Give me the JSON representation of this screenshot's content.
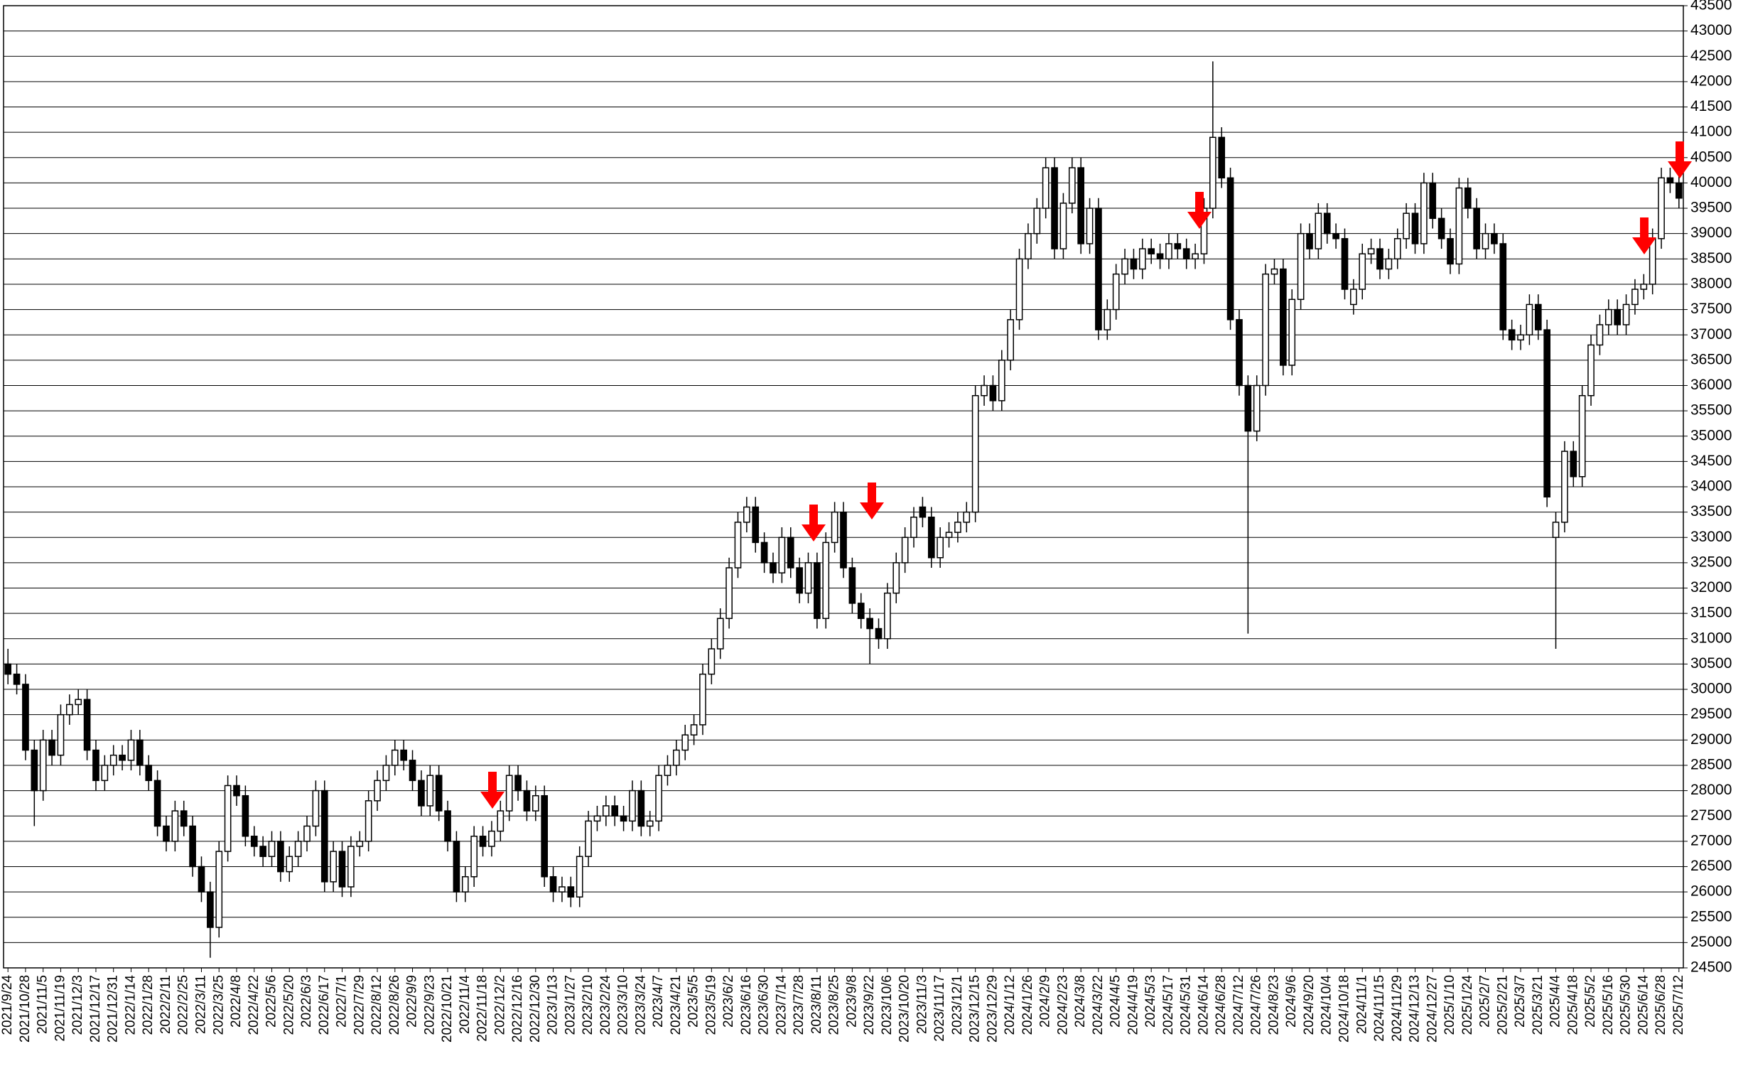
{
  "chart_data": {
    "type": "candlestick",
    "categories": [
      "2021/9/24",
      null,
      "2021/10/28",
      null,
      "2021/11/5",
      null,
      "2021/11/19",
      null,
      "2021/12/3",
      null,
      "2021/12/17",
      null,
      "2021/12/31",
      null,
      "2022/1/14",
      null,
      "2022/1/28",
      null,
      "2022/2/11",
      null,
      "2022/2/25",
      null,
      "2022/3/11",
      null,
      "2022/3/25",
      null,
      "2022/4/8",
      null,
      "2022/4/22",
      null,
      "2022/5/6",
      null,
      "2022/5/20",
      null,
      "2022/6/3",
      null,
      "2022/6/17",
      null,
      "2022/7/1",
      null,
      "2022/7/29",
      null,
      "2022/8/12",
      null,
      "2022/8/26",
      null,
      "2022/9/9",
      null,
      "2022/9/23",
      null,
      "2022/10/21",
      null,
      "2022/11/4",
      null,
      "2022/11/18",
      null,
      "2022/12/2",
      null,
      "2022/12/16",
      null,
      "2022/12/30",
      null,
      "2023/1/13",
      null,
      "2023/1/27",
      null,
      "2023/2/10",
      null,
      "2023/2/24",
      null,
      "2023/3/10",
      null,
      "2023/3/24",
      null,
      "2023/4/7",
      null,
      "2023/4/21",
      null,
      "2023/5/5",
      null,
      "2023/5/19",
      null,
      "2023/6/2",
      null,
      "2023/6/16",
      null,
      "2023/6/30",
      null,
      "2023/7/14",
      null,
      "2023/7/28",
      null,
      "2023/8/11",
      null,
      "2023/8/25",
      null,
      "2023/9/8",
      null,
      "2023/9/22",
      null,
      "2023/10/6",
      null,
      "2023/10/20",
      null,
      "2023/11/3",
      null,
      "2023/11/17",
      null,
      "2023/12/1",
      null,
      "2023/12/15",
      null,
      "2023/12/29",
      null,
      "2024/1/12",
      null,
      "2024/1/26",
      null,
      "2024/2/9",
      null,
      "2024/2/23",
      null,
      "2024/3/8",
      null,
      "2024/3/22",
      null,
      "2024/4/5",
      null,
      "2024/4/19",
      null,
      "2024/5/3",
      null,
      "2024/5/17",
      null,
      "2024/5/31",
      null,
      "2024/6/14",
      null,
      "2024/6/28",
      null,
      "2024/7/12",
      null,
      "2024/7/26",
      null,
      "2024/8/23",
      null,
      "2024/9/6",
      null,
      "2024/9/20",
      null,
      "2024/10/4",
      null,
      "2024/10/18",
      null,
      "2024/11/1",
      null,
      "2024/11/15",
      null,
      "2024/11/29",
      null,
      "2024/12/13",
      null,
      "2024/12/27",
      null,
      "2025/1/10",
      null,
      "2025/1/24",
      null,
      "2025/2/7",
      null,
      "2025/2/21",
      null,
      "2025/3/7",
      null,
      "2025/3/21",
      null,
      "2025/4/4",
      null,
      "2025/4/18",
      null,
      "2025/5/2",
      null,
      "2025/5/16",
      null,
      "2025/5/30",
      null,
      "2025/6/14",
      null,
      "2025/6/28",
      null,
      "2025/7/12"
    ],
    "open": [
      30500,
      30300,
      30100,
      28800,
      28000,
      29000,
      28700,
      29500,
      29700,
      29800,
      28800,
      28200,
      28500,
      28700,
      28600,
      29000,
      28500,
      28200,
      27300,
      27000,
      27600,
      27300,
      26500,
      26000,
      25300,
      26800,
      28100,
      27900,
      27100,
      26900,
      26700,
      27000,
      26400,
      26700,
      27000,
      27300,
      28000,
      26200,
      26800,
      26100,
      26900,
      27000,
      27800,
      28200,
      28500,
      28800,
      28600,
      28200,
      27700,
      28300,
      27600,
      27000,
      26000,
      26300,
      27100,
      26900,
      27200,
      27600,
      28300,
      28000,
      27600,
      27900,
      26300,
      26000,
      26100,
      25900,
      26700,
      27400,
      27500,
      27700,
      27500,
      27400,
      28000,
      27300,
      27400,
      28300,
      28500,
      28800,
      29100,
      29300,
      30300,
      30800,
      31400,
      32400,
      33300,
      33600,
      32900,
      32500,
      32300,
      33000,
      32400,
      31900,
      32500,
      31400,
      32900,
      33500,
      32400,
      31700,
      31400,
      31200,
      31000,
      31900,
      32500,
      33000,
      33600,
      33400,
      32600,
      33000,
      33100,
      33300,
      33500,
      35800,
      36000,
      35700,
      36500,
      37300,
      38500,
      39000,
      39500,
      40300,
      38700,
      39600,
      40300,
      38800,
      39500,
      37100,
      37500,
      38200,
      38500,
      38300,
      38700,
      38600,
      38500,
      38800,
      38700,
      38500,
      38600,
      39500,
      40900,
      40100,
      37300,
      36000,
      35100,
      36000,
      38200,
      38300,
      36400,
      37700,
      39000,
      38700,
      39400,
      39000,
      38900,
      37600,
      37900,
      38600,
      38700,
      38300,
      38500,
      38900,
      39400,
      38800,
      40000,
      39300,
      38900,
      38400,
      39900,
      39500,
      38700,
      39000,
      38800,
      37100,
      36900,
      37000,
      37600,
      37100,
      33000,
      33300,
      34700,
      34200,
      35800,
      36800,
      37200,
      37500,
      37200,
      37600,
      37900,
      38000,
      38900,
      40100,
      40000
    ],
    "high": [
      30800,
      30500,
      30300,
      29000,
      29200,
      29200,
      29700,
      29900,
      30000,
      30000,
      29000,
      28700,
      28900,
      28900,
      29200,
      29200,
      28700,
      28400,
      27500,
      27800,
      27800,
      27500,
      26700,
      26200,
      27000,
      28300,
      28300,
      28100,
      27300,
      27100,
      27200,
      27200,
      26900,
      27200,
      27500,
      28200,
      28200,
      27000,
      27000,
      27100,
      27200,
      28000,
      28400,
      28700,
      29000,
      29000,
      28800,
      28400,
      28500,
      28500,
      27800,
      27200,
      26500,
      27300,
      27300,
      27400,
      27800,
      28500,
      28500,
      28200,
      28100,
      28100,
      26500,
      26300,
      26300,
      26900,
      27600,
      27700,
      27900,
      27900,
      27700,
      28200,
      28200,
      27600,
      28500,
      28700,
      29000,
      29300,
      29500,
      30500,
      31000,
      31600,
      32600,
      33500,
      33800,
      33800,
      33100,
      32700,
      33200,
      33200,
      32600,
      32700,
      32700,
      33100,
      33700,
      33700,
      32600,
      31900,
      31600,
      31400,
      32100,
      32700,
      33200,
      33600,
      33800,
      33600,
      33200,
      33300,
      33500,
      33700,
      36000,
      36200,
      36200,
      36700,
      37500,
      38700,
      39200,
      39700,
      40500,
      40500,
      39800,
      40500,
      40500,
      39700,
      39700,
      37700,
      38400,
      38700,
      38700,
      38900,
      38900,
      38800,
      39000,
      39000,
      38900,
      38800,
      39700,
      42400,
      41100,
      40300,
      37500,
      36200,
      36200,
      38400,
      38500,
      38500,
      37900,
      39200,
      39200,
      39600,
      39600,
      39200,
      39100,
      38100,
      38800,
      38900,
      38900,
      38700,
      39100,
      39600,
      39600,
      40200,
      40200,
      39500,
      39100,
      40100,
      40100,
      39700,
      39200,
      39200,
      39000,
      37300,
      37200,
      37800,
      37800,
      37300,
      33500,
      34900,
      34900,
      36000,
      37000,
      37400,
      37700,
      37700,
      37800,
      38100,
      38200,
      39100,
      40300,
      40300,
      40200
    ],
    "low": [
      30100,
      29900,
      28600,
      27300,
      27800,
      28500,
      28500,
      29300,
      29500,
      28600,
      28000,
      28000,
      28300,
      28400,
      28400,
      28300,
      28000,
      27100,
      26800,
      26800,
      27100,
      26300,
      25800,
      24700,
      25100,
      26600,
      27700,
      26900,
      26700,
      26500,
      26500,
      26200,
      26200,
      26500,
      26800,
      27100,
      26000,
      26000,
      25900,
      25900,
      26700,
      26800,
      27600,
      28000,
      28300,
      28400,
      28000,
      27500,
      27500,
      27400,
      26800,
      25800,
      25800,
      26100,
      26700,
      26700,
      27000,
      27400,
      27800,
      27400,
      27400,
      26100,
      25800,
      25800,
      25700,
      25700,
      26500,
      27200,
      27300,
      27300,
      27200,
      27200,
      27100,
      27100,
      27200,
      28100,
      28300,
      28600,
      28900,
      29100,
      30100,
      30600,
      31200,
      32200,
      33100,
      32700,
      32300,
      32100,
      32100,
      32200,
      31700,
      31700,
      31200,
      31200,
      32700,
      32200,
      31500,
      31200,
      30500,
      30800,
      30800,
      31700,
      32300,
      32800,
      33200,
      32400,
      32400,
      32800,
      32900,
      33100,
      33300,
      35600,
      35500,
      35500,
      36300,
      37100,
      38300,
      38800,
      39300,
      38500,
      38500,
      39400,
      38600,
      38600,
      36900,
      36900,
      37300,
      38000,
      38100,
      38100,
      38400,
      38300,
      38300,
      38500,
      38300,
      38300,
      38400,
      39300,
      39900,
      37100,
      35800,
      31100,
      34900,
      35800,
      38000,
      36200,
      36200,
      37500,
      38500,
      38500,
      38800,
      38700,
      37700,
      37400,
      37700,
      38400,
      38100,
      38100,
      38300,
      38700,
      38600,
      38600,
      39100,
      38700,
      38200,
      38200,
      39300,
      38500,
      38500,
      38600,
      36900,
      36700,
      36700,
      36800,
      36900,
      33600,
      30800,
      33100,
      34000,
      34000,
      35600,
      36600,
      37000,
      37000,
      37000,
      37400,
      37700,
      37800,
      38700,
      39800,
      39500
    ],
    "close": [
      30300,
      30100,
      28800,
      28000,
      29000,
      28700,
      29500,
      29700,
      29800,
      28800,
      28200,
      28500,
      28700,
      28600,
      29000,
      28500,
      28200,
      27300,
      27000,
      27600,
      27300,
      26500,
      26000,
      25300,
      26800,
      28100,
      27900,
      27100,
      26900,
      26700,
      27000,
      26400,
      26700,
      27000,
      27300,
      28000,
      26200,
      26800,
      26100,
      26900,
      27000,
      27800,
      28200,
      28500,
      28800,
      28600,
      28200,
      27700,
      28300,
      27600,
      27000,
      26000,
      26300,
      27100,
      26900,
      27200,
      27600,
      28300,
      28000,
      27600,
      27900,
      26300,
      26000,
      26100,
      25900,
      26700,
      27400,
      27500,
      27700,
      27500,
      27400,
      28000,
      27300,
      27400,
      28300,
      28500,
      28800,
      29100,
      29300,
      30300,
      30800,
      31400,
      32400,
      33300,
      33600,
      32900,
      32500,
      32300,
      33000,
      32400,
      31900,
      32500,
      31400,
      32900,
      33500,
      32400,
      31700,
      31400,
      31200,
      31000,
      31900,
      32500,
      33000,
      33400,
      33400,
      32600,
      33000,
      33100,
      33300,
      33500,
      35800,
      36000,
      35700,
      36500,
      37300,
      38500,
      39000,
      39500,
      40300,
      38700,
      39600,
      40300,
      38800,
      39500,
      37100,
      37500,
      38200,
      38500,
      38300,
      38700,
      38600,
      38500,
      38800,
      38700,
      38500,
      38600,
      39500,
      40900,
      40100,
      37300,
      36000,
      35100,
      36000,
      38200,
      38300,
      36400,
      37700,
      39000,
      38700,
      39400,
      39000,
      38900,
      37900,
      37900,
      38600,
      38700,
      38300,
      38500,
      38900,
      39400,
      38800,
      40000,
      39300,
      38900,
      38400,
      39900,
      39500,
      38700,
      39000,
      38800,
      37100,
      36900,
      37000,
      37600,
      37100,
      33800,
      33300,
      34700,
      34200,
      35800,
      36800,
      37200,
      37500,
      37200,
      37600,
      37900,
      38000,
      38900,
      40100,
      40000,
      39700
    ],
    "up_color": "#ffffff",
    "down_color": "#000000",
    "ylim": [
      24500,
      43500
    ],
    "yticks": [
      24500,
      25000,
      25500,
      26000,
      26500,
      27000,
      27500,
      28000,
      28500,
      29000,
      29500,
      30000,
      30500,
      31000,
      31500,
      32000,
      32500,
      33000,
      33500,
      34000,
      34500,
      35000,
      35500,
      36000,
      36500,
      37000,
      37500,
      38000,
      38500,
      39000,
      39500,
      40000,
      40500,
      41000,
      41500,
      42000,
      42500,
      43000,
      43500
    ],
    "grid": true
  }
}
